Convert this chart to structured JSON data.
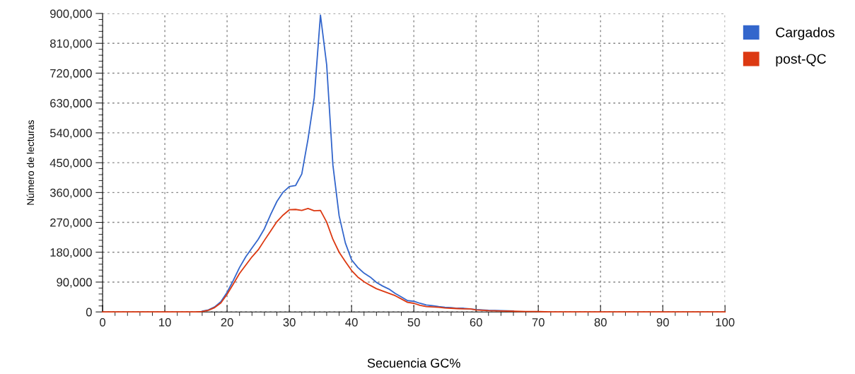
{
  "chart_data": {
    "type": "line",
    "xlabel": "Secuencia GC%",
    "ylabel": "Número de lecturas",
    "x": [
      0,
      5,
      10,
      14,
      15,
      16,
      17,
      18,
      19,
      20,
      21,
      22,
      23,
      24,
      25,
      26,
      27,
      28,
      29,
      30,
      31,
      32,
      33,
      34,
      35,
      36,
      37,
      38,
      39,
      40,
      41,
      42,
      43,
      44,
      45,
      46,
      47,
      48,
      49,
      50,
      51,
      52,
      53,
      54,
      55,
      56,
      57,
      58,
      59,
      60,
      62,
      64,
      66,
      68,
      70,
      72,
      75,
      80,
      90,
      100
    ],
    "series": [
      {
        "name": "Cargados",
        "color": "#3366cc",
        "values": [
          null,
          null,
          null,
          null,
          null,
          2000,
          6000,
          15000,
          31000,
          59000,
          95000,
          134000,
          166000,
          193000,
          219000,
          251000,
          294000,
          333000,
          361000,
          378000,
          381000,
          416000,
          521000,
          646000,
          895000,
          745000,
          443000,
          290000,
          208000,
          157000,
          134000,
          117000,
          105000,
          89000,
          78000,
          69000,
          56000,
          45000,
          34000,
          32000,
          26000,
          21000,
          19000,
          16000,
          14000,
          13000,
          11000,
          11000,
          9000,
          7000,
          5000,
          4000,
          3000,
          null,
          null,
          null,
          null,
          null,
          null,
          null
        ]
      },
      {
        "name": "post-QC",
        "color": "#dc3912",
        "values": [
          0,
          0,
          0,
          0,
          0,
          1000,
          5000,
          13000,
          27000,
          53000,
          84000,
          116000,
          141000,
          166000,
          187000,
          216000,
          244000,
          272000,
          292000,
          308000,
          309000,
          306000,
          312000,
          305000,
          306000,
          271000,
          219000,
          180000,
          152000,
          125000,
          105000,
          91000,
          80000,
          70000,
          63000,
          56000,
          49000,
          39000,
          29000,
          26000,
          20000,
          16000,
          15000,
          14000,
          12000,
          11000,
          10000,
          9000,
          9000,
          6000,
          4000,
          3000,
          2000,
          1000,
          1000,
          0,
          0,
          0,
          0,
          0
        ]
      }
    ],
    "xlim": [
      0,
      100
    ],
    "xticks": [
      0,
      10,
      20,
      30,
      40,
      50,
      60,
      70,
      80,
      90,
      100
    ],
    "ylim": [
      0,
      900000
    ],
    "yticks": [
      {
        "value": 0,
        "label": "0"
      },
      {
        "value": 90000,
        "label": "90,000"
      },
      {
        "value": 180000,
        "label": "180,000"
      },
      {
        "value": 270000,
        "label": "270,000"
      },
      {
        "value": 360000,
        "label": "360,000"
      },
      {
        "value": 450000,
        "label": "450,000"
      },
      {
        "value": 540000,
        "label": "540,000"
      },
      {
        "value": 630000,
        "label": "630,000"
      },
      {
        "value": 720000,
        "label": "720,000"
      },
      {
        "value": 810000,
        "label": "810,000"
      },
      {
        "value": 900000,
        "label": "900,000"
      }
    ],
    "grid": true,
    "legend": "top right",
    "marker": "none",
    "line_style": "solid"
  }
}
